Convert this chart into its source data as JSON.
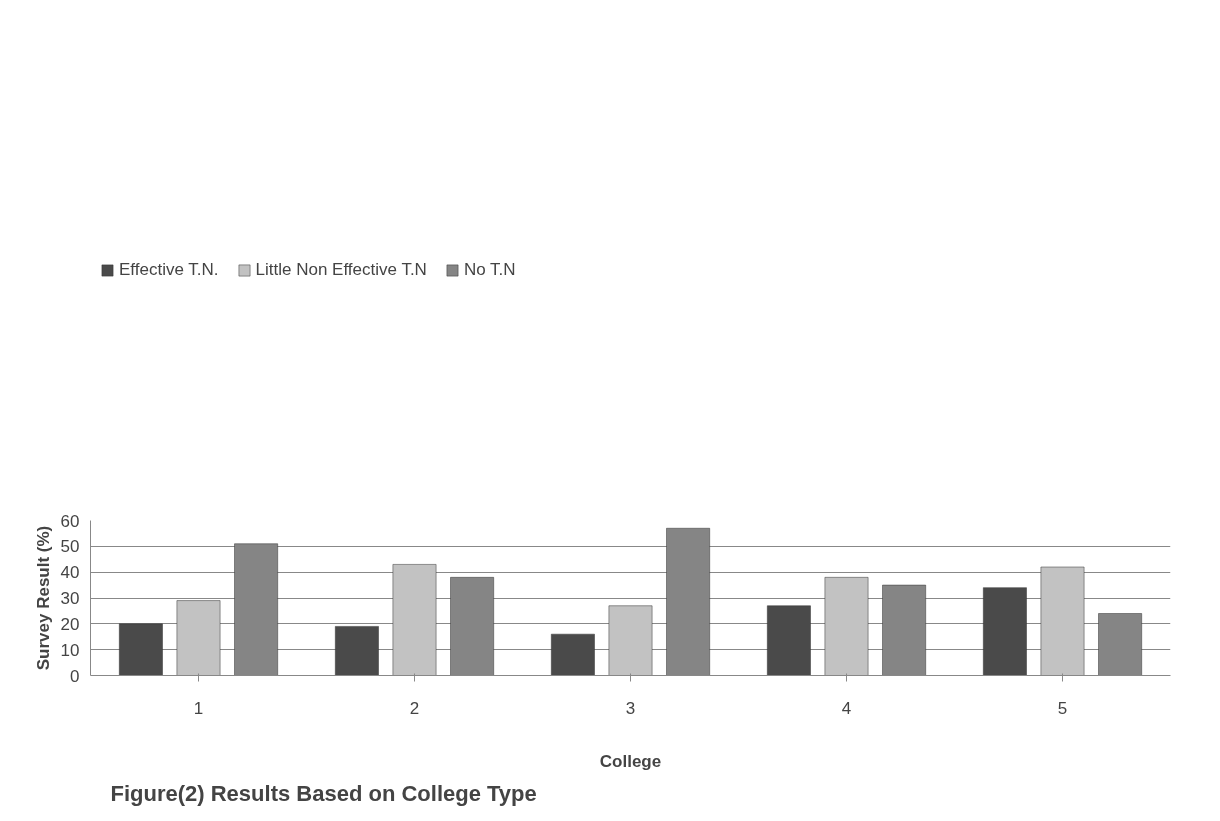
{
  "chart_data": {
    "type": "bar",
    "xlabel": "College",
    "ylabel": "Survey Result (%)",
    "categories": [
      "1",
      "2",
      "3",
      "4",
      "5"
    ],
    "series": [
      {
        "name": "Effective T.N.",
        "color": "#4a4a4a",
        "values": [
          20,
          19,
          16,
          27,
          34
        ]
      },
      {
        "name": "Little Non Effective T.N",
        "color": "#c2c2c2",
        "values": [
          29,
          43,
          27,
          38,
          42
        ]
      },
      {
        "name": "No T.N",
        "color": "#858585",
        "values": [
          51,
          38,
          57,
          35,
          24
        ]
      }
    ],
    "ylim": [
      0,
      60
    ],
    "yticks": [
      0,
      10,
      20,
      30,
      40,
      50,
      60
    ],
    "grid": "y",
    "legend": "top",
    "annotations": [
      "Figure(2) Results Based on College Type"
    ]
  }
}
